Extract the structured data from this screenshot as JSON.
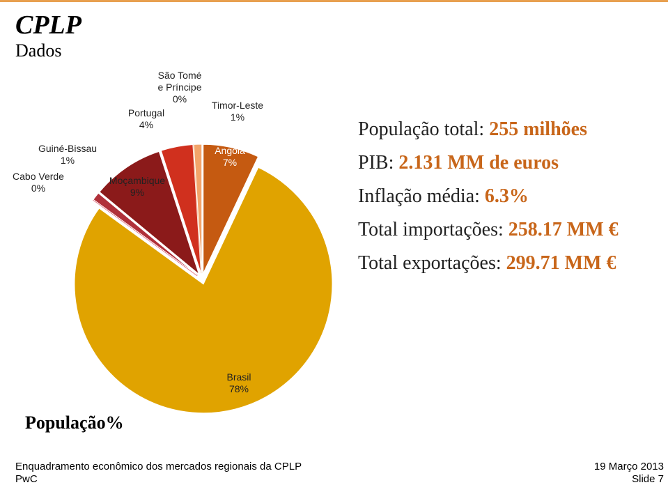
{
  "header": {
    "title": "CPLP",
    "subtitle": "Dados"
  },
  "stats": [
    {
      "label": "População total:",
      "value": "255 milhões"
    },
    {
      "label": "PIB:",
      "value": "2.131 MM de euros"
    },
    {
      "label": "Inflação média:",
      "value": "6.3%"
    },
    {
      "label": "Total importações:",
      "value": "258.17 MM €"
    },
    {
      "label": "Total exportações:",
      "value": "299.71 MM €"
    }
  ],
  "chart_data": {
    "type": "pie",
    "title": "População%",
    "categories": [
      "Angola",
      "Brasil",
      "Cabo Verde",
      "Guiné-Bissau",
      "Moçambique",
      "Portugal",
      "São Tomé e Príncipe",
      "Timor-Leste"
    ],
    "values": [
      7,
      78,
      0,
      1,
      9,
      4,
      0,
      1
    ],
    "value_labels": [
      "7%",
      "78%",
      "0%",
      "1%",
      "9%",
      "4%",
      "0%",
      "1%"
    ],
    "colors": [
      "#c55a11",
      "#e0a300",
      "#e06070",
      "#b0303a",
      "#8b1a1a",
      "#d0301e",
      "#f6c7a8",
      "#f2a46a"
    ]
  },
  "footer": {
    "left": "Enquadramento econômico dos mercados regionais da CPLP",
    "left2": "PwC",
    "right": "19 Março 2013",
    "right2": "Slide 7"
  }
}
